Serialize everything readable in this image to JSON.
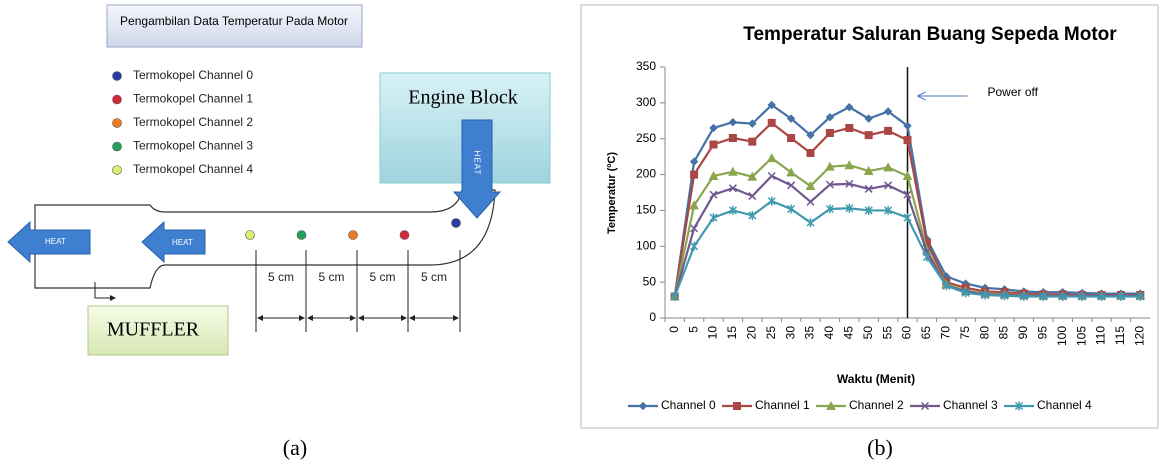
{
  "diagram": {
    "title": "Pengambilan Data Temperatur Pada Motor",
    "legend": [
      {
        "label": "Termokopel Channel 0",
        "color": "#2b3aa8"
      },
      {
        "label": "Termokopel Channel 1",
        "color": "#d4283a"
      },
      {
        "label": "Termokopel Channel 2",
        "color": "#ee7a22"
      },
      {
        "label": "Termokopel Channel 3",
        "color": "#22a35a"
      },
      {
        "label": "Termokopel Channel 4",
        "color": "#d7ee70"
      }
    ],
    "engine_block": "Engine Block",
    "engine_heat": "HEAT",
    "heat_arrows": [
      "HEAT",
      "HEAT"
    ],
    "muffler": "MUFFLER",
    "distances": [
      "5 cm",
      "5 cm",
      "5 cm",
      "5 cm"
    ],
    "caption": "(a)"
  },
  "chart_data": {
    "type": "line",
    "title": "Temperatur  Saluran Buang Sepeda Motor",
    "x_label": "Waktu (Menit)",
    "y_label": "Temperatur (ºC)",
    "categories": [
      "0",
      "5",
      "10",
      "15",
      "20",
      "25",
      "30",
      "35",
      "40",
      "45",
      "50",
      "55",
      "60",
      "65",
      "70",
      "75",
      "80",
      "85",
      "90",
      "95",
      "100",
      "105",
      "110",
      "115",
      "120"
    ],
    "ylim": [
      0,
      350
    ],
    "yticks": [
      0,
      50,
      100,
      150,
      200,
      250,
      300,
      350
    ],
    "annotation": {
      "text": "Power off",
      "x": "60"
    },
    "series": [
      {
        "name": "Channel 0",
        "color": "#4572a7",
        "marker": "diamond",
        "values": [
          30,
          218,
          265,
          273,
          271,
          297,
          278,
          255,
          280,
          294,
          278,
          288,
          268,
          110,
          58,
          48,
          42,
          40,
          37,
          36,
          36,
          35,
          34,
          34,
          34
        ]
      },
      {
        "name": "Channel 1",
        "color": "#aa4643",
        "marker": "square",
        "values": [
          30,
          200,
          242,
          251,
          246,
          272,
          251,
          230,
          258,
          265,
          255,
          261,
          248,
          105,
          50,
          42,
          37,
          36,
          34,
          33,
          33,
          32,
          32,
          32,
          32
        ]
      },
      {
        "name": "Channel 2",
        "color": "#89a54e",
        "marker": "triangle",
        "values": [
          30,
          157,
          198,
          204,
          197,
          223,
          203,
          184,
          211,
          213,
          205,
          210,
          198,
          95,
          47,
          38,
          34,
          33,
          32,
          31,
          31,
          31,
          31,
          31,
          31
        ]
      },
      {
        "name": "Channel 3",
        "color": "#71588f",
        "marker": "x",
        "values": [
          30,
          125,
          172,
          181,
          170,
          198,
          185,
          162,
          186,
          187,
          180,
          185,
          172,
          92,
          45,
          37,
          33,
          32,
          31,
          31,
          31,
          31,
          31,
          31,
          31
        ]
      },
      {
        "name": "Channel 4",
        "color": "#4198af",
        "marker": "star",
        "values": [
          30,
          100,
          140,
          150,
          143,
          163,
          152,
          133,
          152,
          153,
          150,
          150,
          140,
          85,
          45,
          35,
          32,
          31,
          30,
          30,
          30,
          30,
          30,
          30,
          30
        ]
      }
    ],
    "caption": "(b)"
  }
}
